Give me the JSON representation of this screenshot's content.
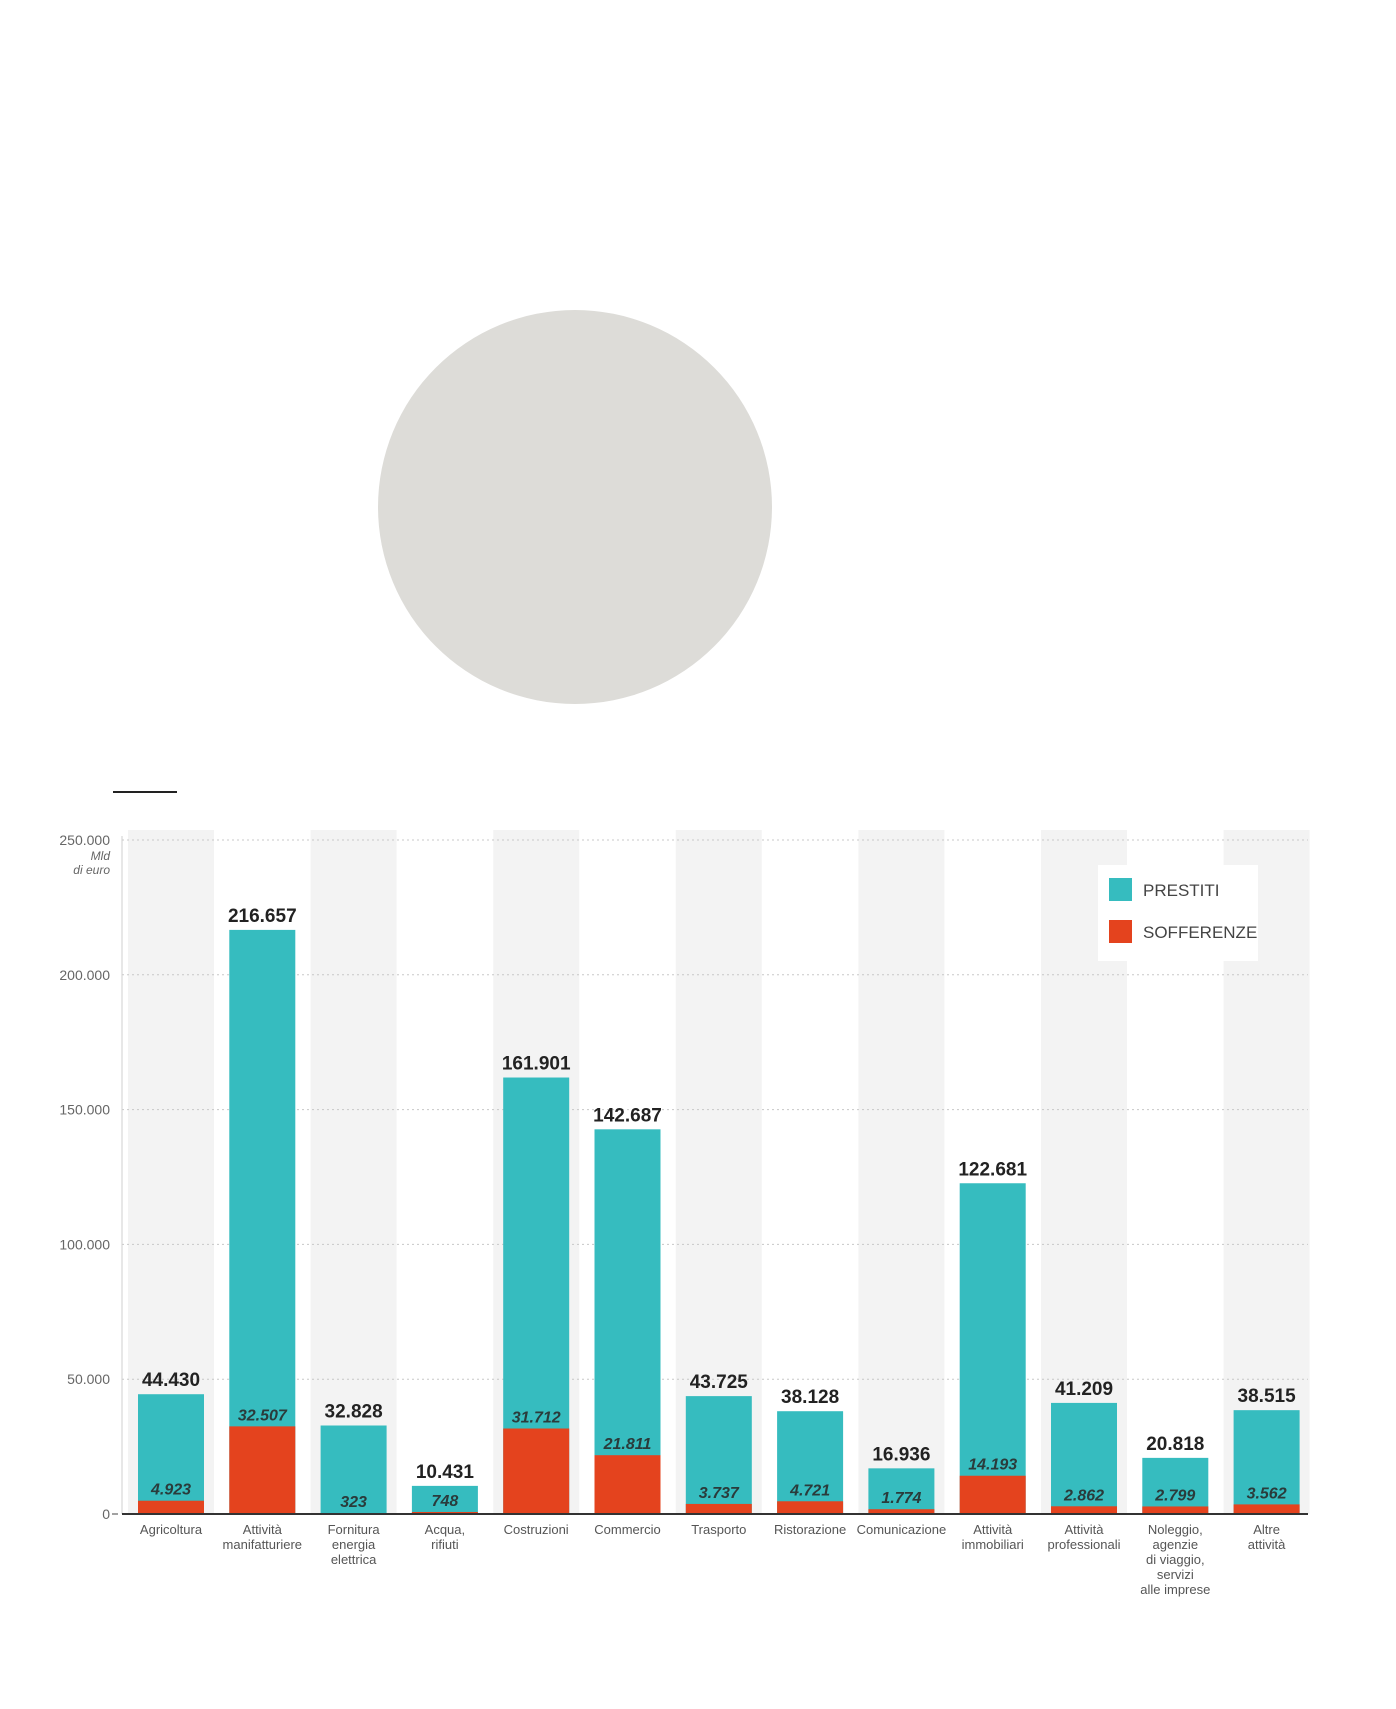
{
  "chart_data": {
    "type": "bar",
    "y_unit_label": [
      "Mld",
      "di euro"
    ],
    "ylim": [
      0,
      250000
    ],
    "yticks": [
      "0",
      "50.000",
      "100.000",
      "150.000",
      "200.000",
      "250.000"
    ],
    "legend_position": "top-right",
    "grid": true,
    "categories": [
      [
        "Agricoltura"
      ],
      [
        "Attività",
        "manifatturiere"
      ],
      [
        "Fornitura",
        "energia",
        "elettrica"
      ],
      [
        "Acqua,",
        "rifiuti"
      ],
      [
        "Costruzioni"
      ],
      [
        "Commercio"
      ],
      [
        "Trasporto"
      ],
      [
        "Ristorazione"
      ],
      [
        "Comunicazione"
      ],
      [
        "Attività",
        "immobiliari"
      ],
      [
        "Attività",
        "professionali"
      ],
      [
        "Noleggio,",
        "agenzie",
        "di viaggio,",
        "servizi",
        "alle imprese"
      ],
      [
        "Altre",
        "attività"
      ]
    ],
    "series": [
      {
        "name": "PRESTITI",
        "color": "#36bcbf",
        "values": [
          44430,
          216657,
          32828,
          10431,
          161901,
          142687,
          43725,
          38128,
          16936,
          122681,
          41209,
          20818,
          38515
        ],
        "labels": [
          "44.430",
          "216.657",
          "32.828",
          "10.431",
          "161.901",
          "142.687",
          "43.725",
          "38.128",
          "16.936",
          "122.681",
          "41.209",
          "20.818",
          "38.515"
        ]
      },
      {
        "name": "SOFFERENZE",
        "color": "#e4431e",
        "values": [
          4923,
          32507,
          323,
          748,
          31712,
          21811,
          3737,
          4721,
          1774,
          14193,
          2862,
          2799,
          3562
        ],
        "labels": [
          "4.923",
          "32.507",
          "323",
          "748",
          "31.712",
          "21.811",
          "3.737",
          "4.721",
          "1.774",
          "14.193",
          "2.862",
          "2.799",
          "3.562"
        ]
      }
    ]
  }
}
